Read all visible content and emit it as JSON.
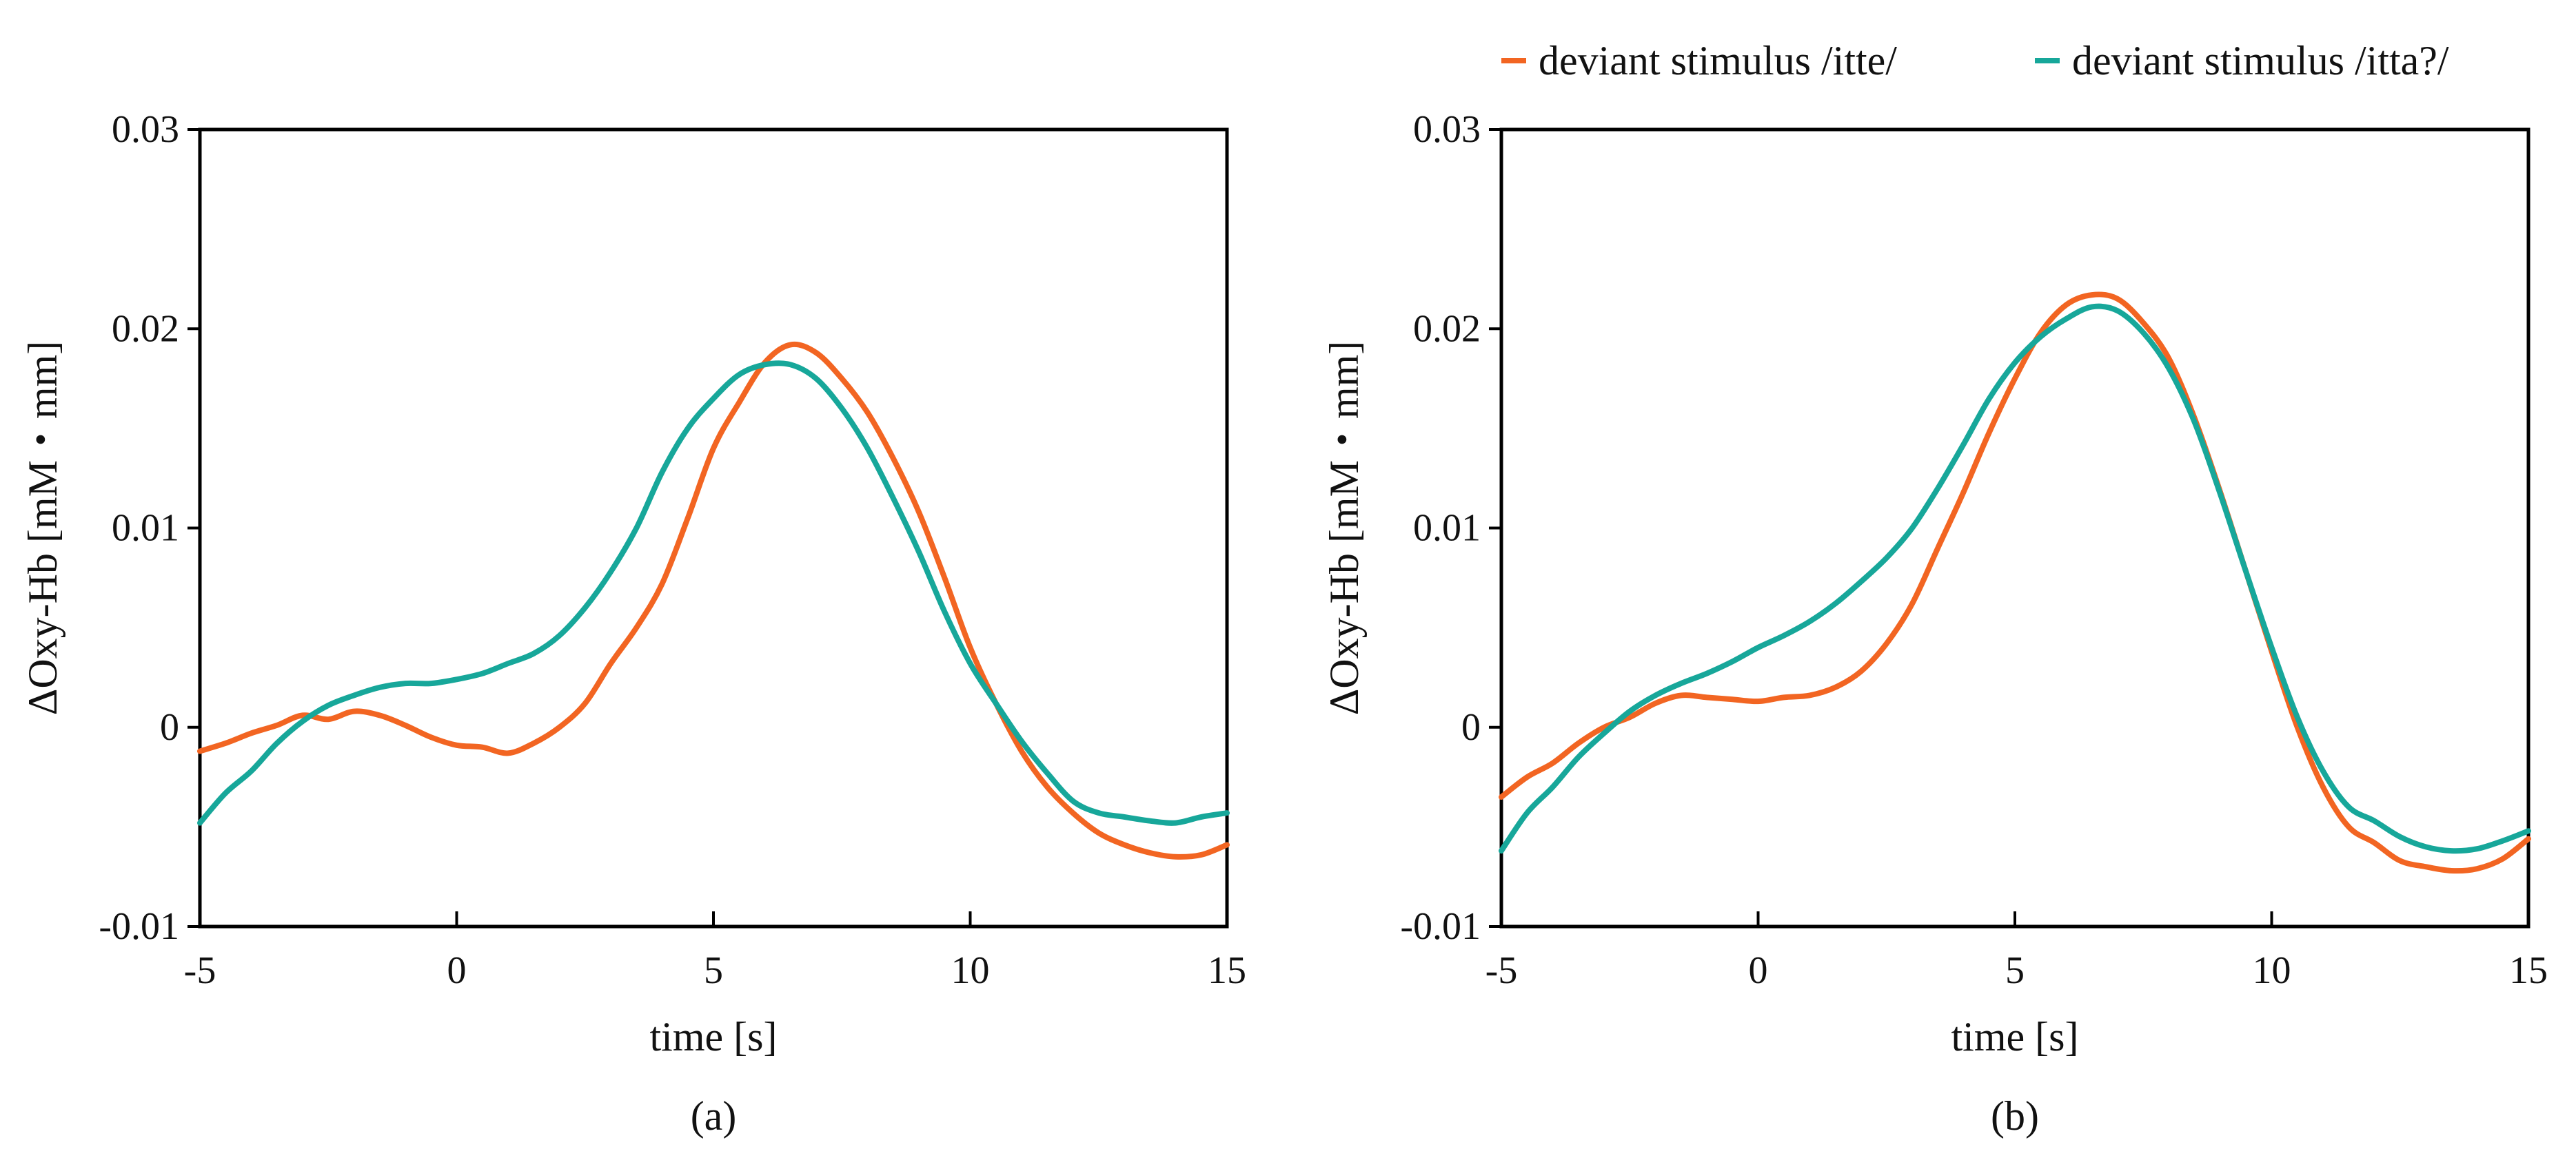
{
  "legend": [
    {
      "label": "deviant stimulus /itte/",
      "color": "#F26522"
    },
    {
      "label": "deviant stimulus /itta?/",
      "color": "#17A79A"
    }
  ],
  "chart_data": [
    {
      "type": "line",
      "panel_label": "(a)",
      "title": "",
      "xlabel": "time [s]",
      "ylabel": "ΔOxy-Hb [mM・mm]",
      "xlim": [
        -5,
        15
      ],
      "ylim": [
        -0.01,
        0.03
      ],
      "xticks": [
        -5,
        0,
        5,
        10,
        15
      ],
      "xtick_labels": [
        "-5",
        "0",
        "5",
        "10",
        "15"
      ],
      "yticks": [
        -0.01,
        0,
        0.01,
        0.02,
        0.03
      ],
      "ytick_labels": [
        "-0.01",
        "0",
        "0.01",
        "0.02",
        "0.03"
      ],
      "grid": false,
      "x": [
        -5,
        -4.5,
        -4,
        -3.5,
        -3,
        -2.5,
        -2,
        -1.5,
        -1,
        -0.5,
        0,
        0.5,
        1,
        1.5,
        2,
        2.5,
        3,
        3.5,
        4,
        4.5,
        5,
        5.5,
        6,
        6.5,
        7,
        7.5,
        8,
        8.5,
        9,
        9.5,
        10,
        10.5,
        11,
        11.5,
        12,
        12.5,
        13,
        13.5,
        14,
        14.5,
        15
      ],
      "series": [
        {
          "name": "deviant stimulus /itte/",
          "color": "#F26522",
          "values": [
            -0.0012,
            -0.0008,
            -0.0003,
            0.0001,
            0.0006,
            0.0004,
            0.0008,
            0.0006,
            0.0001,
            -0.0005,
            -0.0009,
            -0.001,
            -0.0013,
            -0.0008,
            0.0,
            0.0012,
            0.0032,
            0.005,
            0.0072,
            0.0105,
            0.014,
            0.0163,
            0.0183,
            0.0192,
            0.0188,
            0.0175,
            0.0158,
            0.0135,
            0.0108,
            0.0075,
            0.004,
            0.0012,
            -0.0012,
            -0.003,
            -0.0043,
            -0.0053,
            -0.0059,
            -0.0063,
            -0.0065,
            -0.0064,
            -0.0059
          ]
        },
        {
          "name": "deviant stimulus /itta?/",
          "color": "#17A79A",
          "values": [
            -0.0048,
            -0.0033,
            -0.0022,
            -0.0008,
            0.0003,
            0.0011,
            0.0016,
            0.002,
            0.0022,
            0.0022,
            0.0024,
            0.0027,
            0.0032,
            0.0037,
            0.0046,
            0.006,
            0.0078,
            0.01,
            0.0128,
            0.015,
            0.0165,
            0.0177,
            0.0182,
            0.0182,
            0.0175,
            0.016,
            0.014,
            0.0115,
            0.0088,
            0.0058,
            0.0032,
            0.0012,
            -0.0007,
            -0.0023,
            -0.0037,
            -0.0043,
            -0.0045,
            -0.0047,
            -0.0048,
            -0.0045,
            -0.0043
          ]
        }
      ]
    },
    {
      "type": "line",
      "panel_label": "(b)",
      "title": "",
      "xlabel": "time [s]",
      "ylabel": "ΔOxy-Hb [mM・mm]",
      "xlim": [
        -5,
        15
      ],
      "ylim": [
        -0.01,
        0.03
      ],
      "xticks": [
        -5,
        0,
        5,
        10,
        15
      ],
      "xtick_labels": [
        "-5",
        "0",
        "5",
        "10",
        "15"
      ],
      "yticks": [
        -0.01,
        0,
        0.01,
        0.02,
        0.03
      ],
      "ytick_labels": [
        "-0.01",
        "0",
        "0.01",
        "0.02",
        "0.03"
      ],
      "grid": false,
      "x": [
        -5,
        -4.5,
        -4,
        -3.5,
        -3,
        -2.5,
        -2,
        -1.5,
        -1,
        -0.5,
        0,
        0.5,
        1,
        1.5,
        2,
        2.5,
        3,
        3.5,
        4,
        4.5,
        5,
        5.5,
        6,
        6.5,
        7,
        7.5,
        8,
        8.5,
        9,
        9.5,
        10,
        10.5,
        11,
        11.5,
        12,
        12.5,
        13,
        13.5,
        14,
        14.5,
        15
      ],
      "series": [
        {
          "name": "deviant stimulus /itte/",
          "color": "#F26522",
          "values": [
            -0.0035,
            -0.0025,
            -0.0018,
            -0.0008,
            0.0,
            0.0005,
            0.0012,
            0.0016,
            0.0015,
            0.0014,
            0.0013,
            0.0015,
            0.0016,
            0.002,
            0.0028,
            0.0042,
            0.0062,
            0.009,
            0.0118,
            0.0148,
            0.0175,
            0.0198,
            0.0212,
            0.0217,
            0.0215,
            0.0203,
            0.0185,
            0.0155,
            0.0118,
            0.0078,
            0.0038,
            0.0,
            -0.003,
            -0.005,
            -0.0058,
            -0.0067,
            -0.007,
            -0.0072,
            -0.0071,
            -0.0066,
            -0.0056
          ]
        },
        {
          "name": "deviant stimulus /itta?/",
          "color": "#17A79A",
          "values": [
            -0.0062,
            -0.0043,
            -0.003,
            -0.0015,
            -0.0003,
            0.0008,
            0.0016,
            0.0022,
            0.0027,
            0.0033,
            0.004,
            0.0046,
            0.0053,
            0.0062,
            0.0073,
            0.0085,
            0.01,
            0.012,
            0.0142,
            0.0165,
            0.0183,
            0.0196,
            0.0205,
            0.0211,
            0.0209,
            0.0198,
            0.018,
            0.0153,
            0.0117,
            0.0078,
            0.004,
            0.0005,
            -0.0022,
            -0.004,
            -0.0047,
            -0.0055,
            -0.006,
            -0.0062,
            -0.0061,
            -0.0057,
            -0.0052
          ]
        }
      ]
    }
  ]
}
